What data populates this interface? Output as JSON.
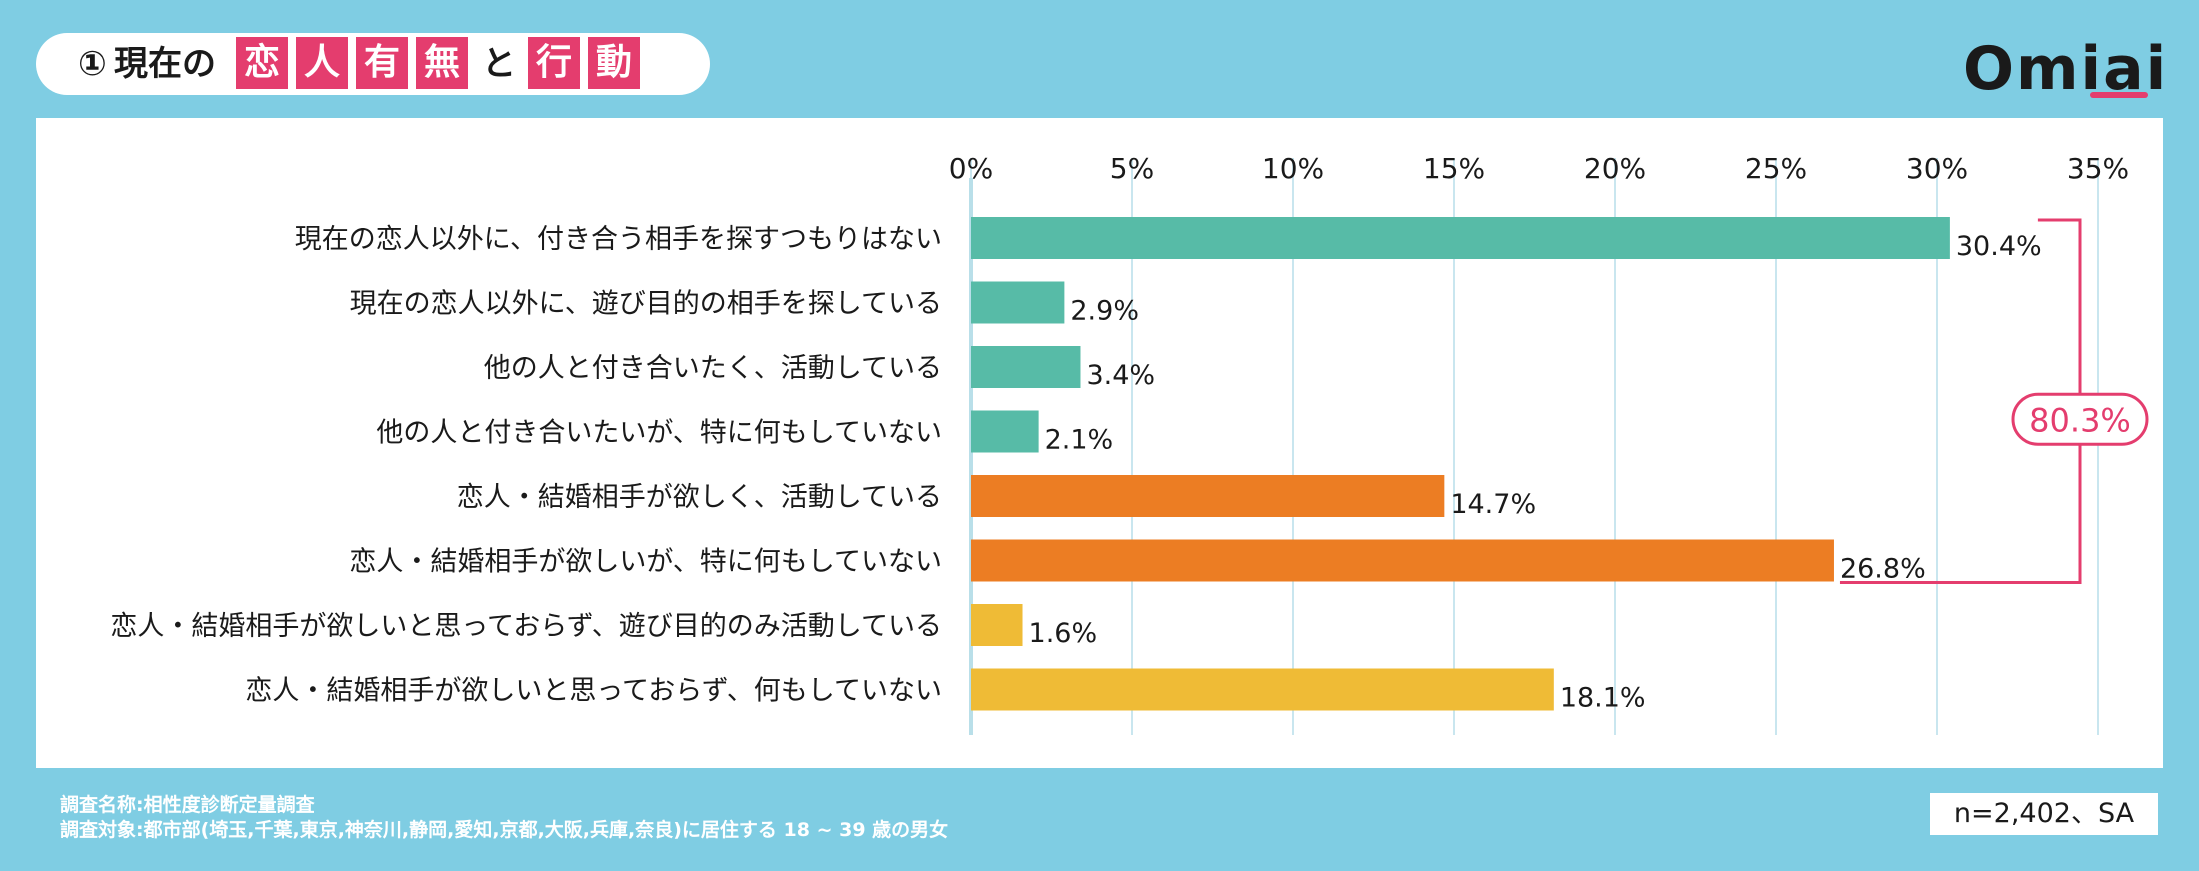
{
  "header": {
    "circle_num": "①",
    "prefix": "現在の",
    "box1": "恋",
    "box2": "人",
    "box3": "有",
    "box4": "無",
    "middle": "と",
    "box5": "行",
    "box6": "動"
  },
  "logo": {
    "text": "Omiai"
  },
  "footer": {
    "survey_name": "調査名称:相性度診断定量調査",
    "survey_target": "調査対象:都市部(埼玉,千葉,東京,神奈川,静岡,愛知,京都,大阪,兵庫,奈良)に居住する 18 ~ 39 歳の男女",
    "sample": "n=2,402、SA"
  },
  "colors": {
    "green": "#57bba7",
    "orange": "#ec7d23",
    "yellow": "#efbb36",
    "pink": "#e43d6e",
    "grid": "#c9e6ef"
  },
  "chart_data": {
    "type": "bar",
    "orientation": "horizontal",
    "xlim": [
      0,
      35
    ],
    "ticks": [
      "0%",
      "5%",
      "10%",
      "15%",
      "20%",
      "25%",
      "30%",
      "35%"
    ],
    "tick_values": [
      0,
      5,
      10,
      15,
      20,
      25,
      30,
      35
    ],
    "categories": [
      "現在の恋人以外に、付き合う相手を探すつもりはない",
      "現在の恋人以外に、遊び目的の相手を探している",
      "他の人と付き合いたく、活動している",
      "他の人と付き合いたいが、特に何もしていない",
      "恋人・結婚相手が欲しく、活動している",
      "恋人・結婚相手が欲しいが、特に何もしていない",
      "恋人・結婚相手が欲しいと思っておらず、遊び目的のみ活動している",
      "恋人・結婚相手が欲しいと思っておらず、何もしていない"
    ],
    "values": [
      30.4,
      2.9,
      3.4,
      2.1,
      14.7,
      26.8,
      1.6,
      18.1
    ],
    "value_labels": [
      "30.4%",
      "2.9%",
      "3.4%",
      "2.1%",
      "14.7%",
      "26.8%",
      "1.6%",
      "18.1%"
    ],
    "bar_colors": [
      "green",
      "green",
      "green",
      "green",
      "orange",
      "orange",
      "yellow",
      "yellow"
    ],
    "bracket": {
      "from_index": 0,
      "to_index": 5,
      "label": "80.3%"
    }
  }
}
